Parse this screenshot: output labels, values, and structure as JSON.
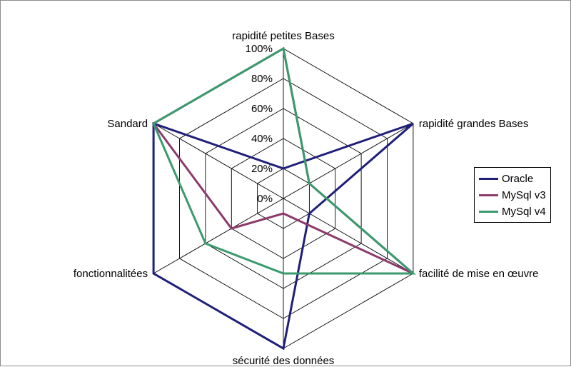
{
  "chart_data": {
    "type": "radar",
    "axes": [
      "rapidité petites Bases",
      "rapidité grandes Bases",
      "facilité de mise en œuvre",
      "sécurité des données",
      "fonctionnalitées",
      "Sandard"
    ],
    "ticks": [
      "0%",
      "20%",
      "40%",
      "60%",
      "80%",
      "100%"
    ],
    "range": [
      0,
      100
    ],
    "grid": true,
    "legend_position": "right",
    "series": [
      {
        "name": "Oracle",
        "color": "#1f1f7a",
        "values": [
          20,
          100,
          20,
          100,
          100,
          100
        ]
      },
      {
        "name": "MySql v3",
        "color": "#8b3a6b",
        "values": [
          100,
          20,
          100,
          10,
          40,
          100
        ]
      },
      {
        "name": "MySql v4",
        "color": "#3a9a6e",
        "values": [
          100,
          20,
          100,
          50,
          60,
          100
        ]
      }
    ]
  }
}
